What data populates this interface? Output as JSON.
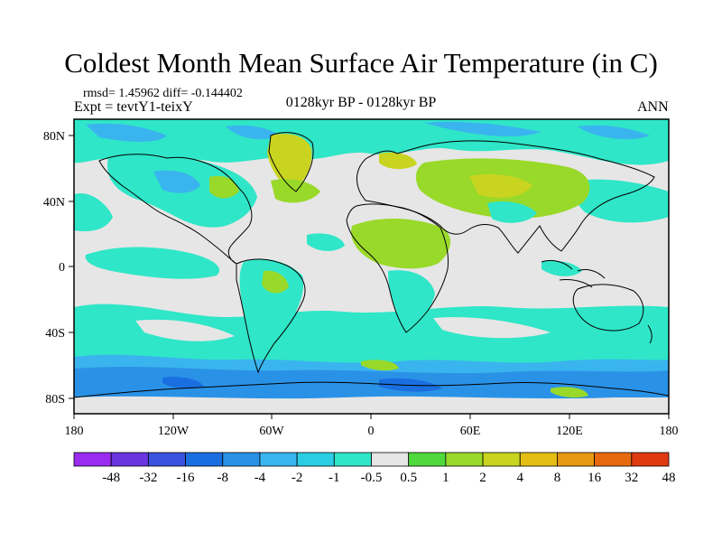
{
  "title": "Coldest Month Mean Surface Air Temperature (in C)",
  "stats_text": "rmsd= 1.45962  diff= -0.144402",
  "expt_text": "Expt = tevtY1-teixY",
  "period_text": "0128kyr BP - 0128kyr BP",
  "season_text": "ANN",
  "lat_ticks": [
    "80N",
    "40N",
    "0",
    "40S",
    "80S"
  ],
  "lon_ticks": [
    "180",
    "120W",
    "60W",
    "0",
    "60E",
    "120E",
    "180"
  ],
  "colorbar": {
    "labels": [
      "-48",
      "-32",
      "-16",
      "-8",
      "-4",
      "-2",
      "-1",
      "-0.5",
      "0.5",
      "1",
      "2",
      "4",
      "8",
      "16",
      "32",
      "48"
    ],
    "colors": [
      "#9a2cf0",
      "#6a34e0",
      "#3a52dd",
      "#1a6fe0",
      "#2a92e6",
      "#3ab4ee",
      "#2acde4",
      "#2fe6c8",
      "#e6e6e6",
      "#4fd93d",
      "#99d92a",
      "#c9d420",
      "#e4be14",
      "#e89812",
      "#e86a10",
      "#e03a10"
    ]
  },
  "colors": {
    "neutral": "#e6e6e6",
    "land_outline": "#000000"
  }
}
